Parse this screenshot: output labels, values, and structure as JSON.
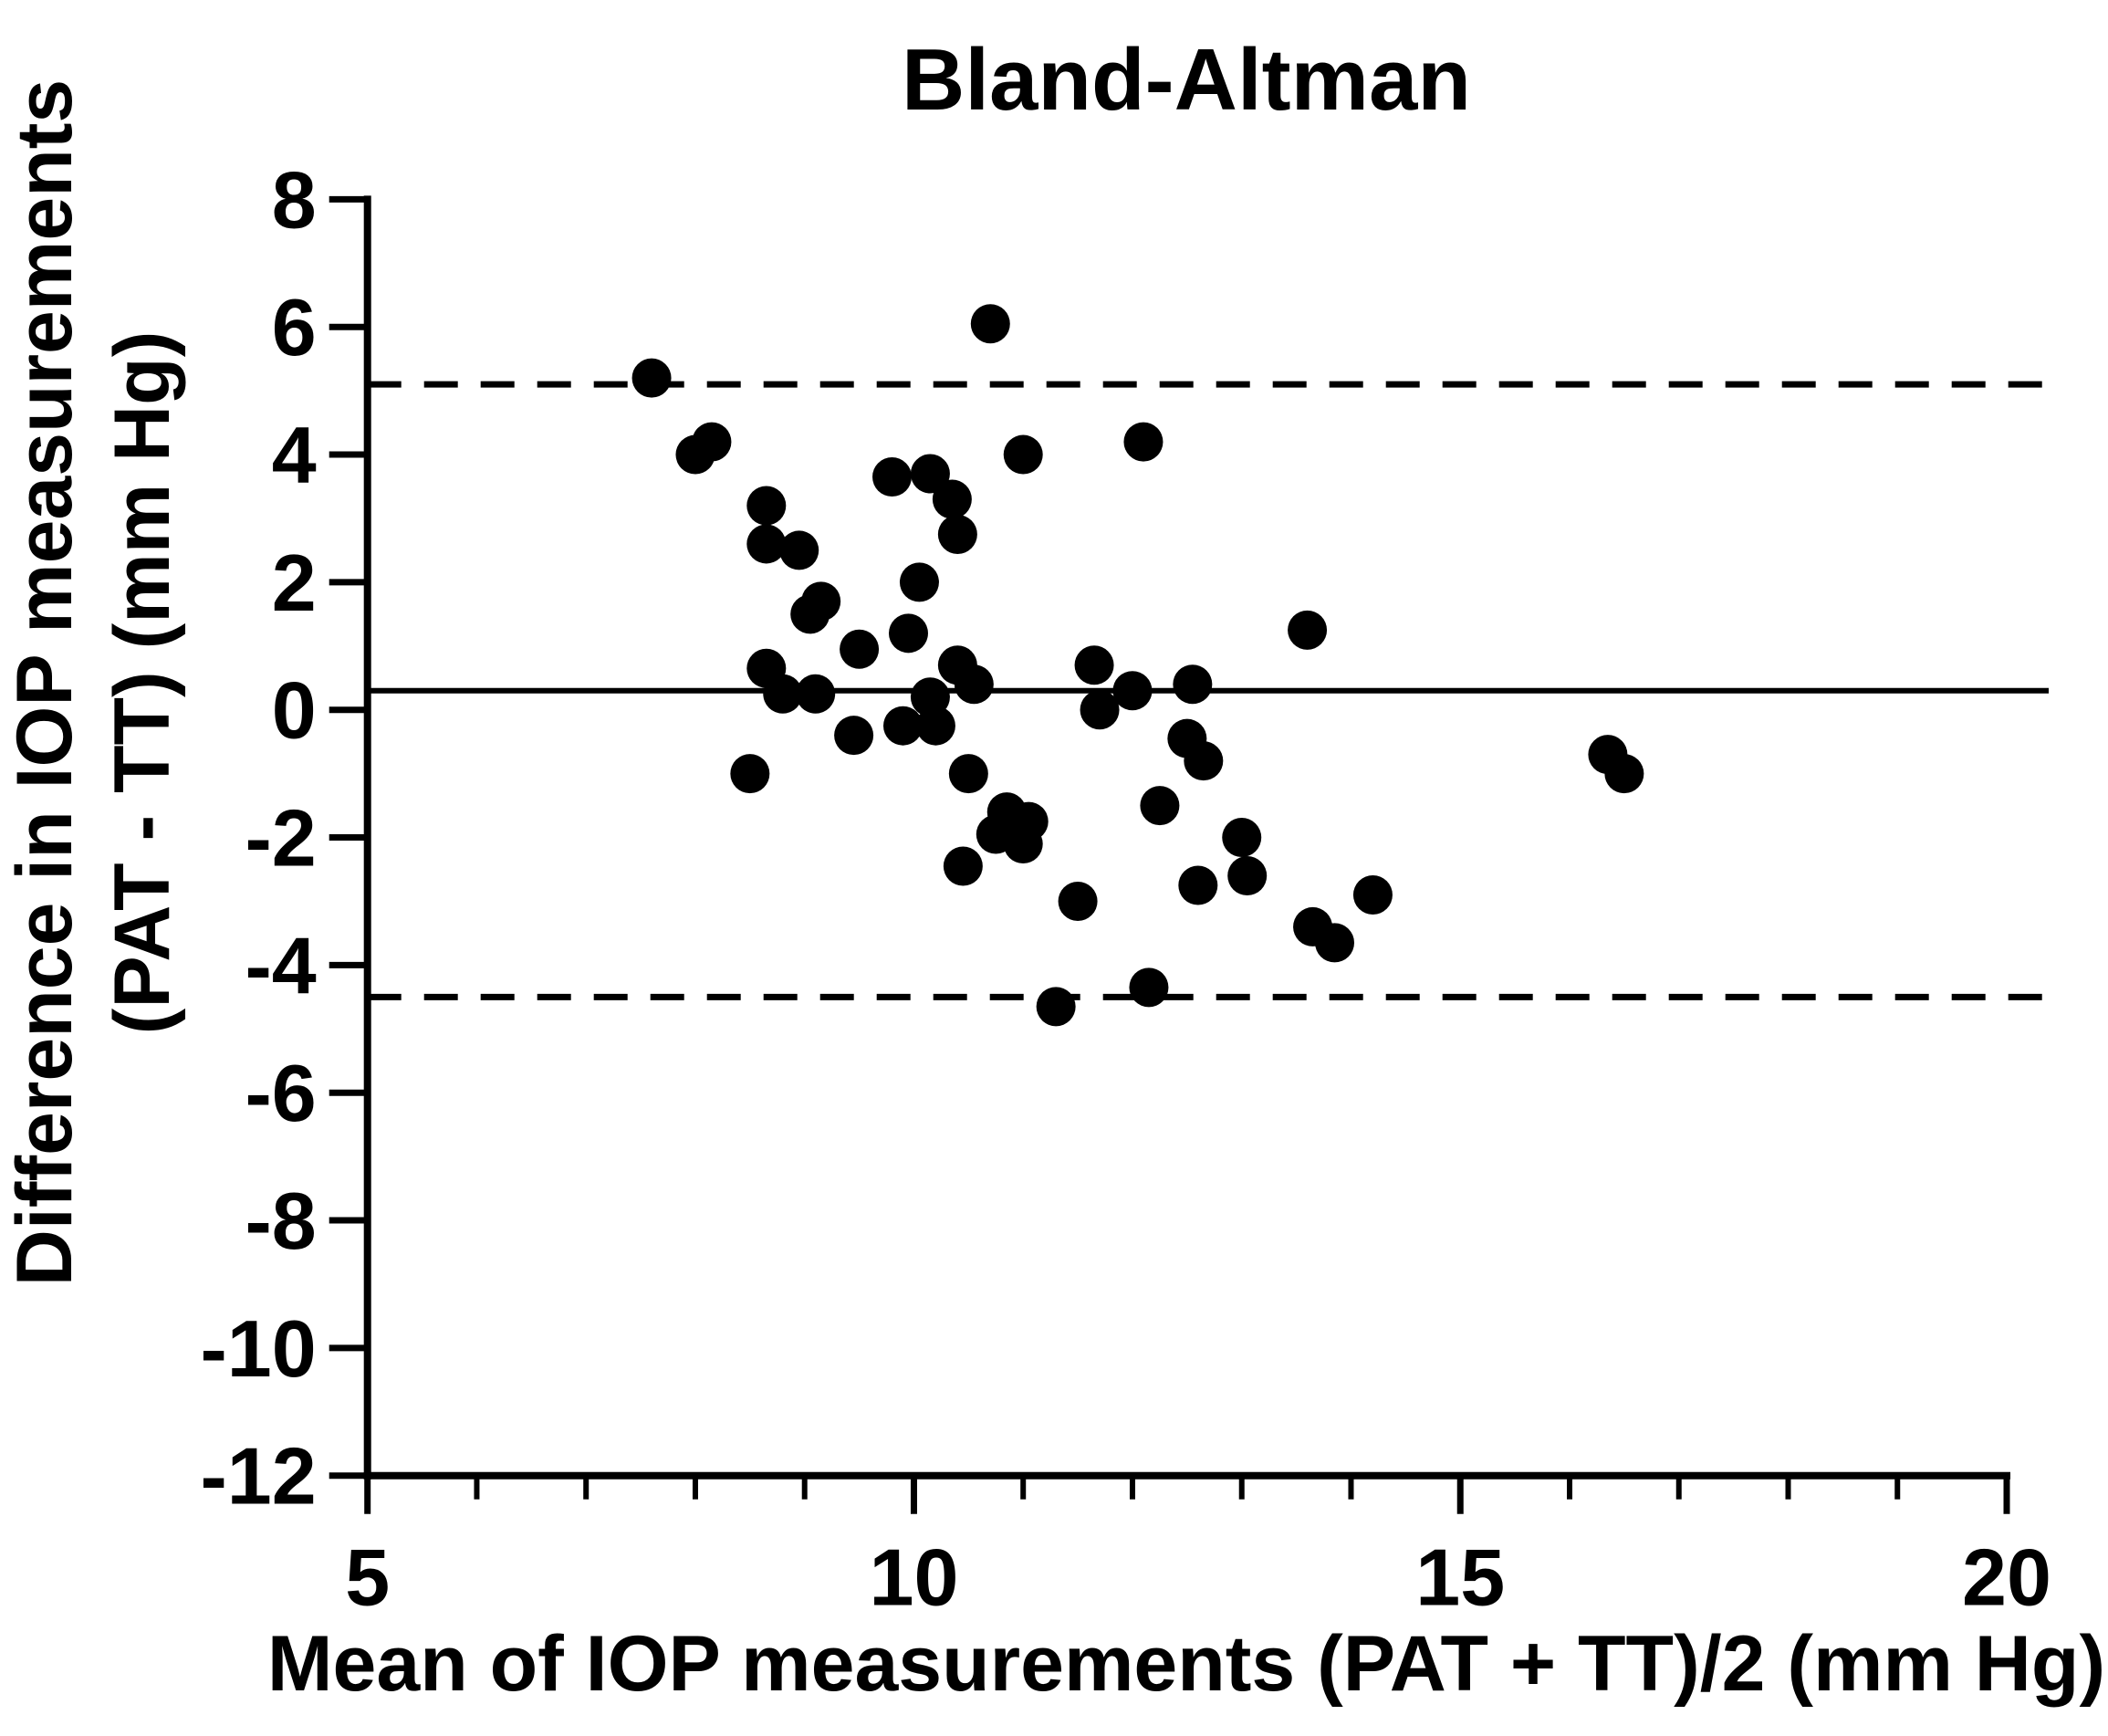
{
  "title": "Bland-Altman",
  "chart_data": {
    "type": "scatter",
    "title": "Bland-Altman",
    "xlabel": "Mean of IOP measurements (PAT + TT)/2 (mm Hg)",
    "ylabel_line1": "Difference in IOP measurements",
    "ylabel_line2": "(PAT - TT) (mm Hg)",
    "xlim": [
      5,
      20
    ],
    "ylim": [
      -12,
      8
    ],
    "x_major_ticks": [
      5,
      10,
      15,
      20
    ],
    "x_minor_tick_step": 1,
    "y_major_ticks": [
      8,
      6,
      4,
      2,
      0,
      -2,
      -4,
      -6,
      -8,
      -10,
      -12
    ],
    "grid": false,
    "legend": "none",
    "marker_color": "#000000",
    "reference_lines": {
      "mean_difference": 0.3,
      "upper_limit_of_agreement": 5.1,
      "lower_limit_of_agreement": -4.5
    },
    "points": [
      [
        7.6,
        5.2
      ],
      [
        8.0,
        4.0
      ],
      [
        8.15,
        4.2
      ],
      [
        8.65,
        3.2
      ],
      [
        8.65,
        2.6
      ],
      [
        8.95,
        2.5
      ],
      [
        9.05,
        1.5
      ],
      [
        9.15,
        1.7
      ],
      [
        9.8,
        3.65
      ],
      [
        10.15,
        3.7
      ],
      [
        10.35,
        3.3
      ],
      [
        10.4,
        2.75
      ],
      [
        10.05,
        2.0
      ],
      [
        10.7,
        6.05
      ],
      [
        11.0,
        4.0
      ],
      [
        12.1,
        4.2
      ],
      [
        13.6,
        1.25
      ],
      [
        9.95,
        1.2
      ],
      [
        9.5,
        0.95
      ],
      [
        8.65,
        0.65
      ],
      [
        8.8,
        0.25
      ],
      [
        9.1,
        0.25
      ],
      [
        10.4,
        0.7
      ],
      [
        10.55,
        0.4
      ],
      [
        10.15,
        0.2
      ],
      [
        11.65,
        0.7
      ],
      [
        11.7,
        0.0
      ],
      [
        12.0,
        0.3
      ],
      [
        12.55,
        0.4
      ],
      [
        9.9,
        -0.25
      ],
      [
        10.2,
        -0.25
      ],
      [
        9.45,
        -0.4
      ],
      [
        8.5,
        -1.0
      ],
      [
        10.5,
        -1.0
      ],
      [
        10.85,
        -1.6
      ],
      [
        10.75,
        -1.95
      ],
      [
        11.05,
        -1.75
      ],
      [
        11.0,
        -2.1
      ],
      [
        10.45,
        -2.45
      ],
      [
        12.25,
        -1.5
      ],
      [
        12.5,
        -0.45
      ],
      [
        12.65,
        -0.8
      ],
      [
        13.0,
        -2.0
      ],
      [
        13.05,
        -2.6
      ],
      [
        11.5,
        -3.0
      ],
      [
        12.6,
        -2.75
      ],
      [
        14.2,
        -2.9
      ],
      [
        13.65,
        -3.4
      ],
      [
        13.85,
        -3.65
      ],
      [
        16.35,
        -0.7
      ],
      [
        16.5,
        -1.0
      ],
      [
        11.3,
        -4.65
      ],
      [
        12.15,
        -4.35
      ]
    ]
  }
}
